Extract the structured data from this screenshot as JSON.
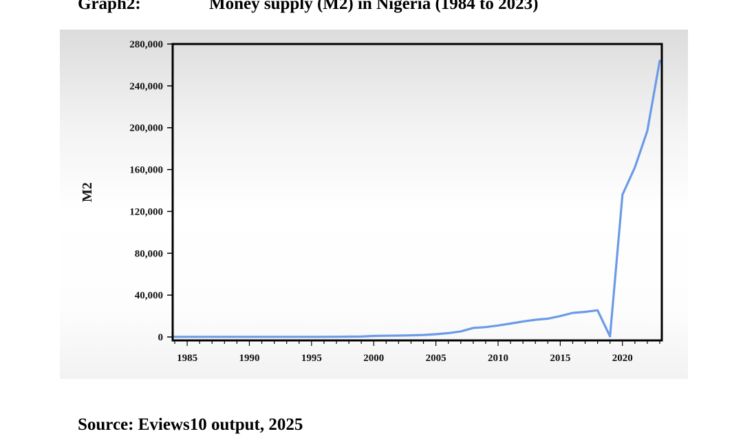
{
  "header": {
    "graph_label": "Graph2:",
    "title": "Money supply (M2) in Nigeria (1984 to 2023)"
  },
  "footer": {
    "source": "Source: Eviews10 output, 2025"
  },
  "colors": {
    "line": "#6b9ae8",
    "axis": "#000000"
  },
  "chart_data": {
    "type": "line",
    "title": "Money supply (M2) in Nigeria (1984 to 2023)",
    "xlabel": "",
    "ylabel": "M2",
    "xlim": [
      1984,
      2023
    ],
    "ylim": [
      0,
      280000
    ],
    "grid": false,
    "y_ticks": [
      0,
      40000,
      80000,
      120000,
      160000,
      200000,
      240000,
      280000
    ],
    "y_tick_labels": [
      "0",
      "40,000",
      "80,000",
      "120,000",
      "160,000",
      "200,000",
      "240,000",
      "280,000"
    ],
    "x_tick_labels": [
      "1985",
      "1990",
      "1995",
      "2000",
      "2005",
      "2010",
      "2015",
      "2020"
    ],
    "x_tick_values": [
      1985,
      1990,
      1995,
      2000,
      2005,
      2010,
      2015,
      2020
    ],
    "series": [
      {
        "name": "M2",
        "x": [
          1984,
          1985,
          1986,
          1987,
          1988,
          1989,
          1990,
          1991,
          1992,
          1993,
          1994,
          1995,
          1996,
          1997,
          1998,
          1999,
          2000,
          2001,
          2002,
          2003,
          2004,
          2005,
          2006,
          2007,
          2008,
          2009,
          2010,
          2011,
          2012,
          2013,
          2014,
          2015,
          2016,
          2017,
          2018,
          2019,
          2020,
          2021,
          2022,
          2023
        ],
        "values": [
          100,
          100,
          100,
          100,
          100,
          100,
          100,
          100,
          100,
          100,
          100,
          100,
          150,
          200,
          300,
          400,
          1000,
          1200,
          1300,
          1600,
          1900,
          2600,
          3700,
          5300,
          8600,
          9400,
          11000,
          12800,
          14800,
          16400,
          17500,
          20000,
          23000,
          24000,
          25500,
          500,
          136000,
          162000,
          197000,
          264000
        ]
      }
    ]
  }
}
